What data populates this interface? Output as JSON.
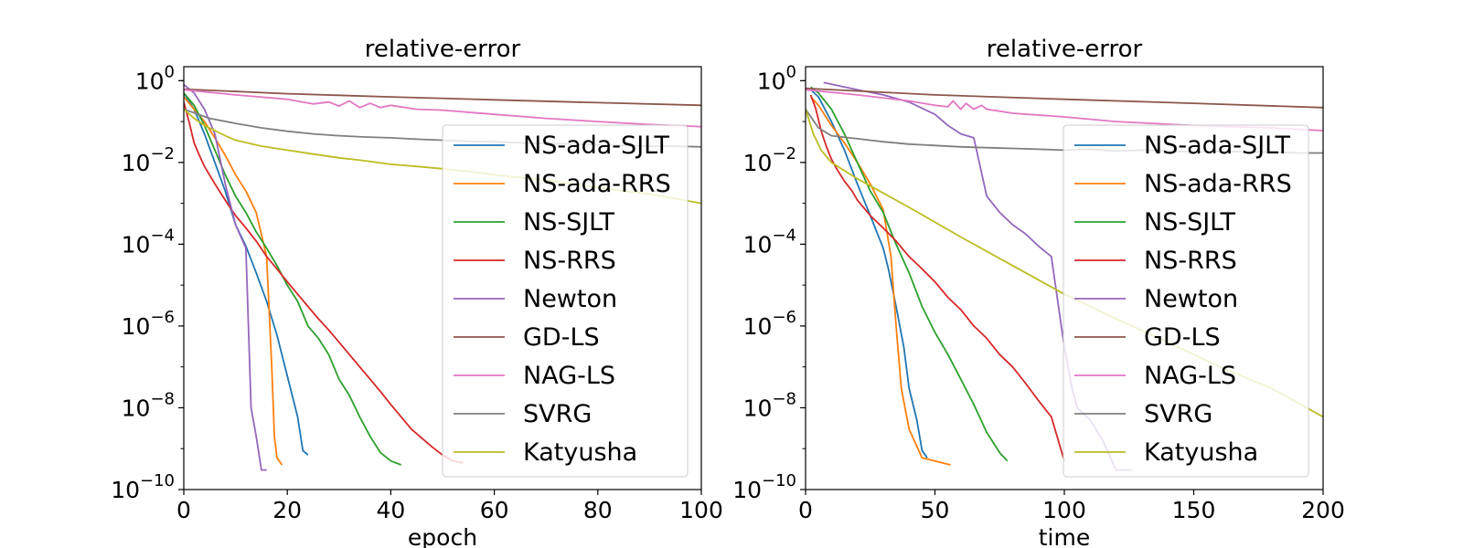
{
  "chart_data": [
    {
      "type": "line",
      "title": "relative-error",
      "xlabel": "epoch",
      "ylabel": "",
      "xscale": "linear",
      "yscale": "log",
      "xlim": [
        0,
        100
      ],
      "ylim": [
        1e-10,
        2.2
      ],
      "xticks": [
        0,
        20,
        40,
        60,
        80,
        100
      ],
      "xtick_labels": [
        "0",
        "20",
        "40",
        "60",
        "80",
        "100"
      ],
      "yticks": [
        {
          "value": 1,
          "base": "10",
          "exp": "0"
        },
        {
          "value": 0.01,
          "base": "10",
          "exp": "−2"
        },
        {
          "value": 0.0001,
          "base": "10",
          "exp": "−4"
        },
        {
          "value": 1e-06,
          "base": "10",
          "exp": "−6"
        },
        {
          "value": 1e-08,
          "base": "10",
          "exp": "−8"
        },
        {
          "value": 1e-10,
          "base": "10",
          "exp": "−10"
        }
      ],
      "legend_position": "right",
      "series": [
        {
          "name": "NS-ada-SJLT",
          "color": "#1f77b4",
          "x": [
            0,
            2,
            4,
            6,
            8,
            10,
            12,
            14,
            16,
            18,
            20,
            22,
            23,
            24
          ],
          "y": [
            0.5,
            0.2,
            0.05,
            0.01,
            0.002,
            0.0003,
            9e-05,
            2e-05,
            4e-06,
            6e-07,
            6e-08,
            6e-09,
            9e-10,
            7e-10
          ]
        },
        {
          "name": "NS-ada-RRS",
          "color": "#ff7f0e",
          "x": [
            0,
            2,
            4,
            6,
            8,
            10,
            12,
            14,
            16,
            17,
            17.5,
            18,
            19
          ],
          "y": [
            0.4,
            0.2,
            0.1,
            0.04,
            0.015,
            0.005,
            0.002,
            0.0006,
            5e-05,
            1e-07,
            2e-09,
            6e-10,
            4e-10
          ]
        },
        {
          "name": "NS-SJLT",
          "color": "#2ca02c",
          "x": [
            0,
            2,
            4,
            6,
            8,
            10,
            12,
            14,
            16,
            18,
            20,
            22,
            24,
            26,
            28,
            30,
            32,
            34,
            36,
            38,
            40,
            42
          ],
          "y": [
            0.5,
            0.25,
            0.08,
            0.02,
            0.005,
            0.0015,
            0.0006,
            0.0002,
            8e-05,
            3e-05,
            1e-05,
            4e-06,
            1e-06,
            5e-07,
            2e-07,
            5e-08,
            2e-08,
            6e-09,
            2e-09,
            8e-10,
            5e-10,
            4e-10
          ]
        },
        {
          "name": "NS-RRS",
          "color": "#d62728",
          "x": [
            0,
            1,
            2,
            3,
            4,
            6,
            8,
            10,
            12,
            14,
            16,
            18,
            20,
            22,
            24,
            26,
            28,
            30,
            32,
            34,
            36,
            38,
            40,
            42,
            44,
            46,
            48,
            50,
            52,
            54
          ],
          "y": [
            0.3,
            0.1,
            0.03,
            0.015,
            0.008,
            0.003,
            0.0012,
            0.0005,
            0.00025,
            0.00012,
            5e-05,
            2.5e-05,
            1.2e-05,
            6e-06,
            3e-06,
            1.5e-06,
            8e-07,
            4e-07,
            2e-07,
            1e-07,
            5e-08,
            2.5e-08,
            1.2e-08,
            6e-09,
            3e-09,
            1.8e-09,
            1.1e-09,
            7e-10,
            5e-10,
            4.5e-10
          ]
        },
        {
          "name": "Newton",
          "color": "#9467bd",
          "x": [
            0,
            2,
            4,
            6,
            8,
            10,
            12,
            13,
            14,
            15,
            16
          ],
          "y": [
            0.8,
            0.5,
            0.2,
            0.05,
            0.003,
            0.0003,
            8e-05,
            1e-08,
            2e-09,
            3e-10,
            3e-10
          ]
        },
        {
          "name": "GD-LS",
          "color": "#8c564b",
          "x": [
            0,
            20,
            40,
            60,
            80,
            100
          ],
          "y": [
            0.62,
            0.48,
            0.4,
            0.34,
            0.29,
            0.25
          ]
        },
        {
          "name": "NAG-LS",
          "color": "#e377c2",
          "x": [
            0,
            10,
            20,
            25,
            28,
            30,
            32,
            34,
            36,
            38,
            40,
            45,
            50,
            60,
            70,
            80,
            90,
            100
          ],
          "y": [
            0.6,
            0.45,
            0.35,
            0.27,
            0.3,
            0.24,
            0.32,
            0.22,
            0.28,
            0.22,
            0.25,
            0.2,
            0.19,
            0.15,
            0.12,
            0.1,
            0.085,
            0.075
          ]
        },
        {
          "name": "SVRG",
          "color": "#7f7f7f",
          "x": [
            0,
            5,
            10,
            15,
            20,
            25,
            30,
            35,
            40,
            45,
            50,
            55,
            60,
            65,
            70,
            75,
            80,
            85,
            90,
            95,
            100
          ],
          "y": [
            0.2,
            0.12,
            0.09,
            0.07,
            0.058,
            0.05,
            0.045,
            0.042,
            0.04,
            0.037,
            0.035,
            0.033,
            0.032,
            0.03,
            0.029,
            0.028,
            0.027,
            0.026,
            0.025,
            0.025,
            0.024
          ]
        },
        {
          "name": "Katyusha",
          "color": "#bcbd22",
          "x": [
            0,
            2,
            4,
            6,
            8,
            10,
            15,
            20,
            25,
            30,
            35,
            40,
            45,
            50,
            55,
            60,
            65,
            70,
            75,
            80,
            85,
            90,
            95,
            100
          ],
          "y": [
            0.2,
            0.12,
            0.08,
            0.06,
            0.045,
            0.035,
            0.025,
            0.02,
            0.016,
            0.013,
            0.011,
            0.009,
            0.008,
            0.007,
            0.006,
            0.005,
            0.0043,
            0.0037,
            0.003,
            0.0025,
            0.002,
            0.0017,
            0.0013,
            0.001
          ]
        }
      ]
    },
    {
      "type": "line",
      "title": "relative-error",
      "xlabel": "time",
      "ylabel": "",
      "xscale": "linear",
      "yscale": "log",
      "xlim": [
        0,
        200
      ],
      "ylim": [
        1e-10,
        2.2
      ],
      "xticks": [
        0,
        50,
        100,
        150,
        200
      ],
      "xtick_labels": [
        "0",
        "50",
        "100",
        "150",
        "200"
      ],
      "yticks": [
        {
          "value": 1,
          "base": "10",
          "exp": "0"
        },
        {
          "value": 0.01,
          "base": "10",
          "exp": "−2"
        },
        {
          "value": 0.0001,
          "base": "10",
          "exp": "−4"
        },
        {
          "value": 1e-06,
          "base": "10",
          "exp": "−6"
        },
        {
          "value": 1e-08,
          "base": "10",
          "exp": "−8"
        },
        {
          "value": 1e-10,
          "base": "10",
          "exp": "−10"
        }
      ],
      "legend_position": "right",
      "series": [
        {
          "name": "NS-ada-SJLT",
          "color": "#1f77b4",
          "x": [
            2,
            5,
            10,
            15,
            20,
            25,
            30,
            32,
            35,
            38,
            40,
            43,
            45,
            47
          ],
          "y": [
            0.6,
            0.4,
            0.1,
            0.02,
            0.003,
            0.0005,
            8e-05,
            2.5e-05,
            3e-06,
            3e-07,
            3e-08,
            5e-09,
            9e-10,
            6e-10
          ]
        },
        {
          "name": "NS-ada-RRS",
          "color": "#ff7f0e",
          "x": [
            2,
            5,
            10,
            15,
            20,
            25,
            30,
            33,
            35,
            37,
            40,
            45,
            50,
            56
          ],
          "y": [
            0.4,
            0.25,
            0.08,
            0.03,
            0.01,
            0.003,
            0.0007,
            5e-05,
            1e-06,
            3e-08,
            3e-09,
            6e-10,
            5e-10,
            4e-10
          ]
        },
        {
          "name": "NS-SJLT",
          "color": "#2ca02c",
          "x": [
            2,
            5,
            10,
            15,
            20,
            25,
            30,
            35,
            40,
            45,
            50,
            55,
            60,
            65,
            70,
            75,
            78
          ],
          "y": [
            0.7,
            0.5,
            0.2,
            0.05,
            0.01,
            0.002,
            0.0006,
            0.0001,
            2e-05,
            3e-06,
            7e-07,
            2e-07,
            5e-08,
            1.2e-08,
            2.5e-09,
            8e-10,
            5e-10
          ]
        },
        {
          "name": "NS-RRS",
          "color": "#d62728",
          "x": [
            2,
            4,
            6,
            8,
            10,
            12,
            15,
            18,
            20,
            25,
            30,
            35,
            40,
            45,
            50,
            55,
            60,
            65,
            70,
            75,
            80,
            85,
            90,
            95,
            100
          ],
          "y": [
            0.45,
            0.2,
            0.06,
            0.025,
            0.012,
            0.007,
            0.0035,
            0.002,
            0.0012,
            0.0005,
            0.00025,
            0.00012,
            5e-05,
            2.5e-05,
            1.2e-05,
            5e-06,
            2.5e-06,
            1e-06,
            5e-07,
            2e-07,
            1e-07,
            4e-08,
            1.5e-08,
            6e-09,
            5e-10
          ]
        },
        {
          "name": "Newton",
          "color": "#9467bd",
          "x": [
            7,
            20,
            30,
            40,
            50,
            55,
            60,
            65,
            70,
            75,
            80,
            85,
            90,
            95,
            100,
            103,
            105,
            110,
            115,
            120,
            126
          ],
          "y": [
            0.9,
            0.6,
            0.45,
            0.3,
            0.15,
            0.08,
            0.05,
            0.04,
            0.0015,
            0.0006,
            0.0003,
            0.00018,
            9e-05,
            5e-05,
            3e-07,
            3e-08,
            1e-08,
            5e-09,
            1.5e-09,
            3e-10,
            3e-10
          ]
        },
        {
          "name": "GD-LS",
          "color": "#8c564b",
          "x": [
            0,
            50,
            100,
            150,
            200
          ],
          "y": [
            0.65,
            0.45,
            0.35,
            0.28,
            0.22
          ]
        },
        {
          "name": "NAG-LS",
          "color": "#e377c2",
          "x": [
            0,
            20,
            40,
            50,
            55,
            57,
            60,
            62,
            65,
            68,
            70,
            75,
            80,
            100,
            120,
            150,
            180,
            200
          ],
          "y": [
            0.6,
            0.45,
            0.32,
            0.25,
            0.23,
            0.32,
            0.2,
            0.28,
            0.2,
            0.25,
            0.2,
            0.18,
            0.16,
            0.13,
            0.1,
            0.08,
            0.07,
            0.06
          ]
        },
        {
          "name": "SVRG",
          "color": "#7f7f7f",
          "x": [
            0,
            5,
            10,
            20,
            30,
            40,
            50,
            60,
            70,
            80,
            90,
            100,
            110,
            120,
            130,
            140,
            150,
            160,
            170,
            180,
            190,
            200
          ],
          "y": [
            0.2,
            0.07,
            0.045,
            0.038,
            0.032,
            0.028,
            0.026,
            0.024,
            0.023,
            0.022,
            0.021,
            0.02,
            0.021,
            0.019,
            0.02,
            0.019,
            0.018,
            0.019,
            0.018,
            0.018,
            0.017,
            0.017
          ]
        },
        {
          "name": "Katyusha",
          "color": "#bcbd22",
          "x": [
            0,
            3,
            6,
            10,
            20,
            40,
            60,
            80,
            100,
            120,
            140,
            160,
            180,
            200
          ],
          "y": [
            0.2,
            0.05,
            0.02,
            0.01,
            0.004,
            0.0008,
            0.00015,
            3e-05,
            6e-06,
            1.5e-06,
            4e-07,
            1e-07,
            3e-08,
            6e-09
          ]
        }
      ]
    }
  ]
}
